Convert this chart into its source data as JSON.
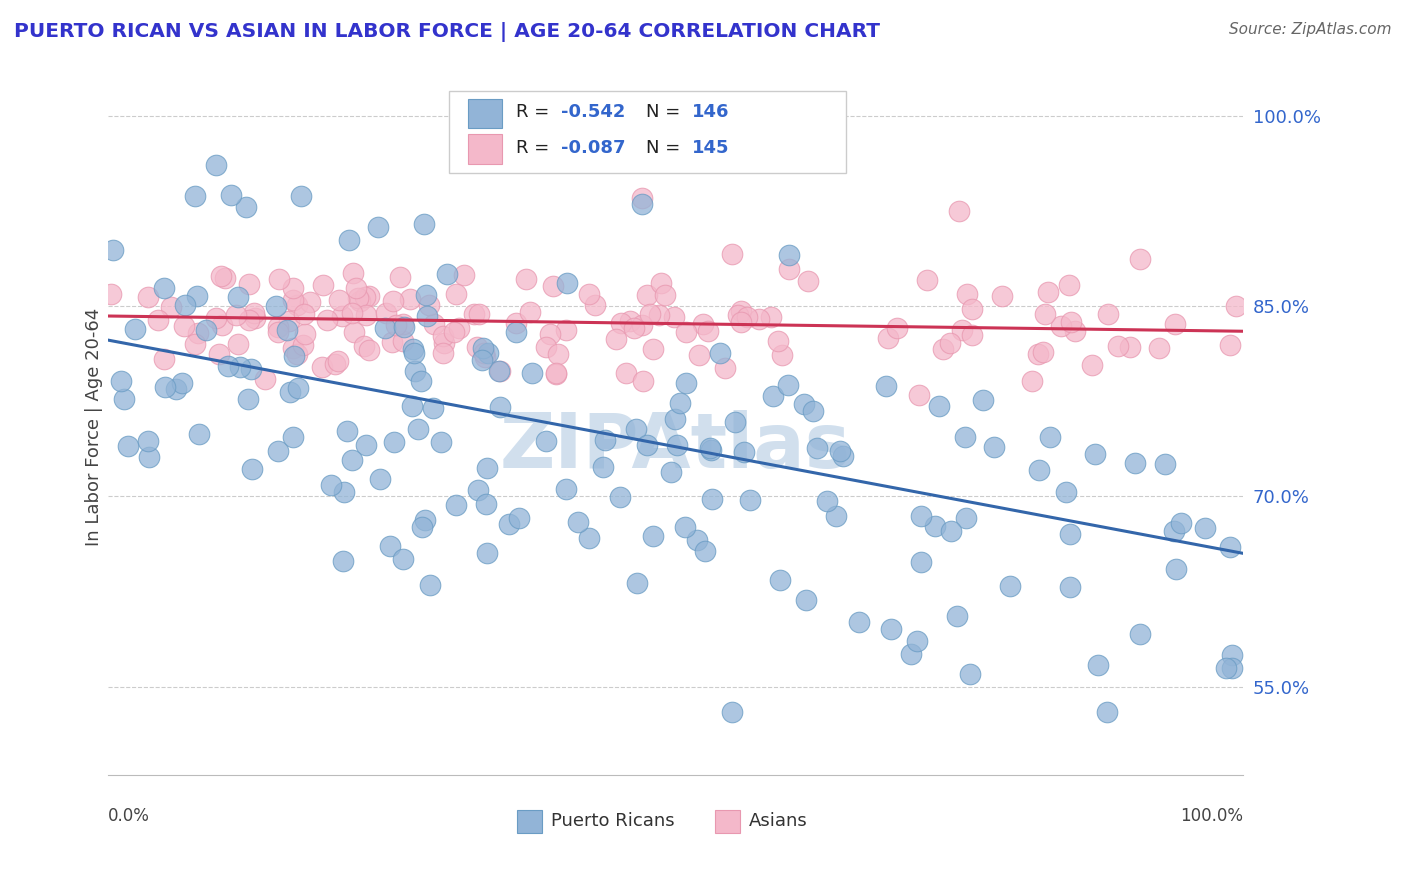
{
  "title": "PUERTO RICAN VS ASIAN IN LABOR FORCE | AGE 20-64 CORRELATION CHART",
  "source": "Source: ZipAtlas.com",
  "ylabel": "In Labor Force | Age 20-64",
  "xmin": 0.0,
  "xmax": 1.0,
  "ymin": 0.48,
  "ymax": 1.03,
  "yticks": [
    0.55,
    0.7,
    0.85,
    1.0
  ],
  "ytick_labels": [
    "55.0%",
    "70.0%",
    "85.0%",
    "100.0%"
  ],
  "blue_R": "-0.542",
  "blue_N": "146",
  "pink_R": "-0.087",
  "pink_N": "145",
  "blue_color": "#92b4d7",
  "pink_color": "#f4b8ca",
  "blue_edge_color": "#6a9cc4",
  "pink_edge_color": "#e898b0",
  "blue_line_color": "#3366aa",
  "pink_line_color": "#cc3355",
  "title_color": "#3333cc",
  "legend_text_color": "#3366cc",
  "watermark_color": "#ccdcec",
  "blue_trend_x0": 0.0,
  "blue_trend_y0": 0.823,
  "blue_trend_x1": 1.0,
  "blue_trend_y1": 0.655,
  "pink_trend_x0": 0.0,
  "pink_trend_y0": 0.842,
  "pink_trend_x1": 1.0,
  "pink_trend_y1": 0.83
}
